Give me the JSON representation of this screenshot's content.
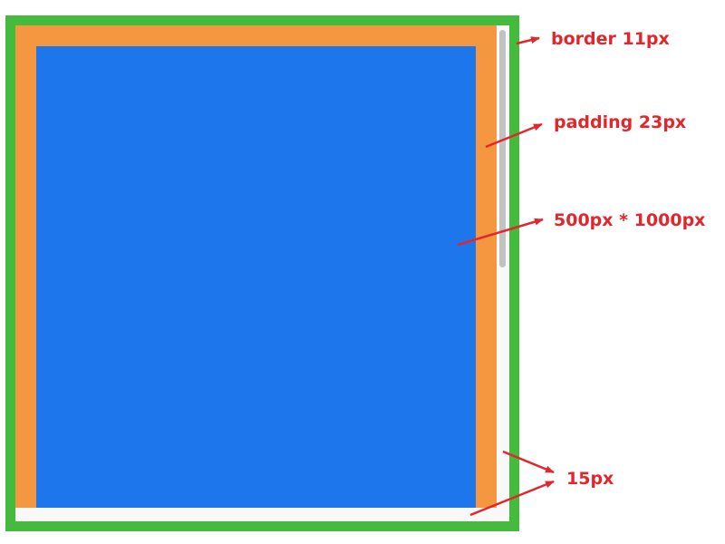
{
  "annotations": {
    "border": "border 11px",
    "padding": "padding 23px",
    "content_size": "500px * 1000px",
    "scrollbar": "15px"
  },
  "colors": {
    "border": "#44bb3d",
    "padding": "#f59640",
    "content": "#1e76ec",
    "scrollbar_track": "#f8f8f8",
    "scrollbar_thumb": "#c2c2c2",
    "annotation": "#e3262b"
  }
}
